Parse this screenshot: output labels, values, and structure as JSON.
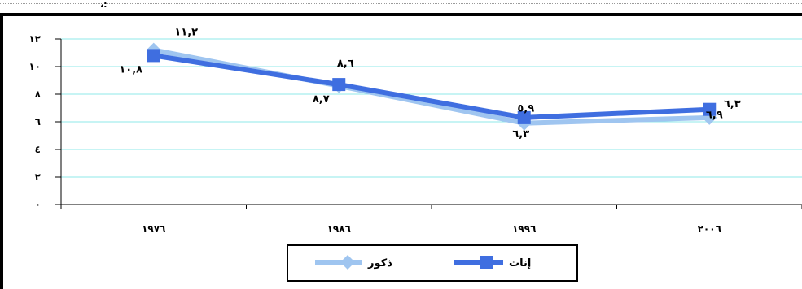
{
  "page_mark": "،:",
  "chart_data": {
    "type": "line",
    "title": "",
    "xlabel": "",
    "ylabel": "",
    "categories": [
      "١٩٧٦",
      "١٩٨٦",
      "١٩٩٦",
      "٢٠٠٦"
    ],
    "ylim": [
      0,
      12
    ],
    "yticks": [
      {
        "value": 0,
        "label": "٠"
      },
      {
        "value": 2,
        "label": "٢"
      },
      {
        "value": 4,
        "label": "٤"
      },
      {
        "value": 6,
        "label": "٦"
      },
      {
        "value": 8,
        "label": "٨"
      },
      {
        "value": 10,
        "label": "١٠"
      },
      {
        "value": 12,
        "label": "١٢"
      }
    ],
    "grid": true,
    "legend_position": "bottom-center",
    "series": [
      {
        "name": "ذكور",
        "color": "#9fc5f0",
        "marker": "diamond",
        "values": [
          11.2,
          8.6,
          5.9,
          6.3
        ],
        "labels": [
          "١١,٢",
          "٨,٦",
          "٥,٩",
          "٦,٣"
        ]
      },
      {
        "name": "إناث",
        "color": "#3f6ee0",
        "marker": "square",
        "values": [
          10.8,
          8.7,
          6.3,
          6.9
        ],
        "labels": [
          "١٠,٨",
          "٨,٧",
          "٦,٣",
          "٦,٩"
        ]
      }
    ]
  }
}
